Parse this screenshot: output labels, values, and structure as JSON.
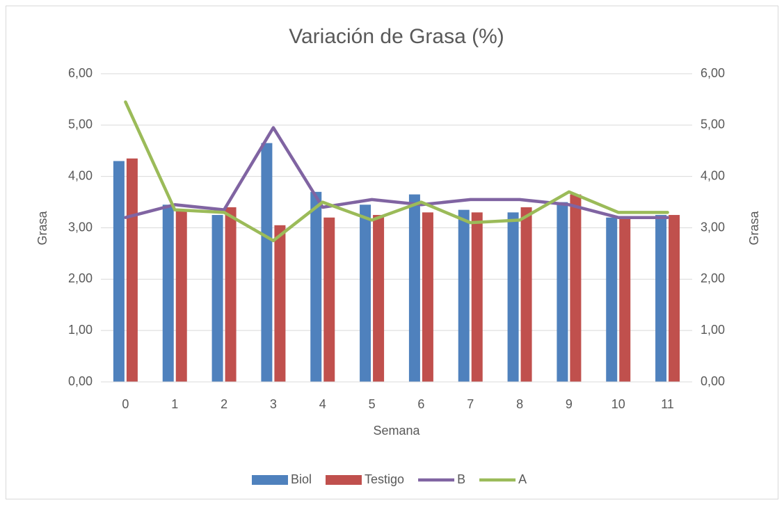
{
  "chart_data": {
    "type": "bar",
    "title": "Variación de Grasa (%)",
    "x_label": "Semana",
    "y_label": "Grasa",
    "y2_label": "Grasa",
    "categories": [
      "0",
      "1",
      "2",
      "3",
      "4",
      "5",
      "6",
      "7",
      "8",
      "9",
      "10",
      "11"
    ],
    "series": [
      {
        "name": "Biol",
        "color": "#4f81bd",
        "type": "bar",
        "values": [
          4.3,
          3.45,
          3.25,
          4.65,
          3.7,
          3.45,
          3.65,
          3.35,
          3.3,
          3.5,
          3.2,
          3.25
        ]
      },
      {
        "name": "Testigo",
        "color": "#c0504d",
        "type": "bar",
        "values": [
          4.35,
          3.35,
          3.4,
          3.05,
          3.2,
          3.25,
          3.3,
          3.3,
          3.4,
          3.65,
          3.2,
          3.25
        ]
      },
      {
        "name": "B",
        "color": "#8064a2",
        "type": "line",
        "axis": "y2",
        "values": [
          3.2,
          3.45,
          3.35,
          4.95,
          3.4,
          3.55,
          3.45,
          3.55,
          3.55,
          3.45,
          3.2,
          3.2
        ]
      },
      {
        "name": "A",
        "color": "#9bbb59",
        "type": "line",
        "axis": "y2",
        "values": [
          5.45,
          3.35,
          3.3,
          2.75,
          3.5,
          3.15,
          3.5,
          3.1,
          3.15,
          3.7,
          3.3,
          3.3
        ]
      }
    ],
    "ylim": [
      0,
      6
    ],
    "yticks": [
      {
        "value": 0,
        "label": "0,00"
      },
      {
        "value": 1,
        "label": "1,00"
      },
      {
        "value": 2,
        "label": "2,00"
      },
      {
        "value": 3,
        "label": "3,00"
      },
      {
        "value": 4,
        "label": "4,00"
      },
      {
        "value": 5,
        "label": "5,00"
      },
      {
        "value": 6,
        "label": "6,00"
      }
    ],
    "y2lim": [
      0,
      6
    ],
    "y2ticks": [
      {
        "value": 0,
        "label": "0,00"
      },
      {
        "value": 1,
        "label": "1,00"
      },
      {
        "value": 2,
        "label": "2,00"
      },
      {
        "value": 3,
        "label": "3,00"
      },
      {
        "value": 4,
        "label": "4,00"
      },
      {
        "value": 5,
        "label": "5,00"
      },
      {
        "value": 6,
        "label": "6,00"
      }
    ],
    "grid": true,
    "legend": "bottom"
  }
}
